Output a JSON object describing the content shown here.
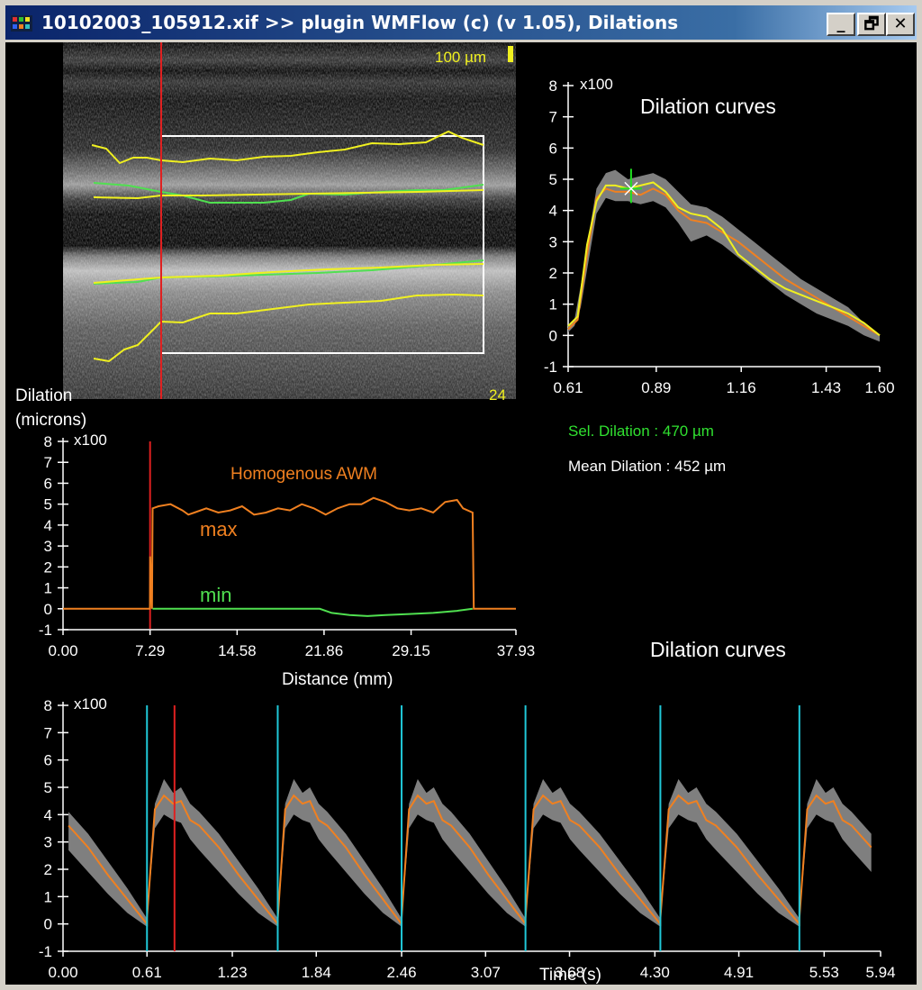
{
  "window": {
    "title": "10102003_105912.xif >> plugin WMFlow (c) (v 1.05), Dilations",
    "buttons": {
      "minimize": "_",
      "restore": "🗗",
      "close": "✕"
    },
    "colors": {
      "titlebar": "#0a246a",
      "background": "#000000"
    }
  },
  "ultrasound": {
    "scale_label": "100 µm",
    "frame_number": "24",
    "colors": {
      "tracking": "#f0f020",
      "wall": "#50e050",
      "cursor": "#e02020",
      "roi": "#ffffff"
    }
  },
  "readouts": {
    "sel_dilation": "Sel. Dilation : 470 µm",
    "mean_dilation": "Mean Dilation : 452 µm"
  },
  "chart_data": [
    {
      "type": "line",
      "id": "dilation-curves-top",
      "title": "Dilation curves",
      "multiplier_label": "x100",
      "ylim": [
        -1,
        8
      ],
      "yticks": [
        "8",
        "7",
        "6",
        "5",
        "4",
        "3",
        "2",
        "1",
        "0",
        "-1"
      ],
      "xlim": [
        0.61,
        1.6
      ],
      "xticks": [
        "0.61",
        "0.89",
        "1.16",
        "1.43",
        "1.60"
      ],
      "band": {
        "x": [
          0.61,
          0.63,
          0.65,
          0.68,
          0.7,
          0.73,
          0.76,
          0.8,
          0.84,
          0.88,
          0.92,
          0.96,
          1.0,
          1.05,
          1.1,
          1.15,
          1.2,
          1.25,
          1.3,
          1.35,
          1.4,
          1.45,
          1.5,
          1.55,
          1.6
        ],
        "upper": [
          0.3,
          0.5,
          1.6,
          3.5,
          4.7,
          5.2,
          5.3,
          5.0,
          5.1,
          5.2,
          5.0,
          4.6,
          4.2,
          4.1,
          3.8,
          3.4,
          3.0,
          2.6,
          2.2,
          1.8,
          1.5,
          1.2,
          0.9,
          0.4,
          0.0
        ],
        "lower": [
          0.1,
          0.3,
          0.9,
          2.7,
          3.9,
          4.4,
          4.3,
          4.3,
          4.2,
          4.3,
          4.1,
          3.6,
          3.0,
          3.2,
          2.9,
          2.5,
          2.1,
          1.7,
          1.3,
          1.0,
          0.7,
          0.5,
          0.3,
          0.0,
          -0.2
        ]
      },
      "series": [
        {
          "color": "#f08020",
          "x": [
            0.61,
            0.64,
            0.67,
            0.7,
            0.73,
            0.76,
            0.8,
            0.84,
            0.88,
            0.92,
            0.96,
            1.0,
            1.05,
            1.1,
            1.15,
            1.2,
            1.25,
            1.3,
            1.35,
            1.4,
            1.45,
            1.5,
            1.55,
            1.6
          ],
          "y": [
            0.2,
            0.5,
            2.6,
            4.4,
            4.7,
            4.6,
            4.6,
            4.5,
            4.7,
            4.5,
            4.0,
            3.7,
            3.6,
            3.3,
            3.0,
            2.6,
            2.2,
            1.8,
            1.5,
            1.2,
            0.9,
            0.6,
            0.3,
            0.0
          ]
        },
        {
          "color": "#f0f020",
          "x": [
            0.61,
            0.64,
            0.67,
            0.7,
            0.73,
            0.76,
            0.8,
            0.84,
            0.88,
            0.92,
            0.96,
            1.0,
            1.05,
            1.1,
            1.15,
            1.2,
            1.25,
            1.3,
            1.35,
            1.4,
            1.45,
            1.5,
            1.55,
            1.6
          ],
          "y": [
            0.3,
            0.6,
            2.9,
            4.3,
            4.8,
            4.8,
            4.7,
            4.8,
            4.9,
            4.6,
            4.1,
            3.9,
            3.8,
            3.4,
            2.6,
            2.2,
            1.8,
            1.5,
            1.3,
            1.1,
            0.9,
            0.7,
            0.4,
            0.0
          ]
        }
      ],
      "marker": {
        "x": 0.81,
        "y": 4.7,
        "color": "#20e020"
      }
    },
    {
      "type": "line",
      "id": "dilation-vs-distance",
      "ylabel": "Dilation\n(microns)",
      "ylabel_lines": [
        "Dilation",
        "(microns)"
      ],
      "multiplier_label": "x100",
      "title": "Homogenous AWM",
      "xlabel": "Distance (mm)",
      "ylim": [
        -1,
        8
      ],
      "yticks": [
        "8",
        "7",
        "6",
        "5",
        "4",
        "3",
        "2",
        "1",
        "0",
        "-1"
      ],
      "xlim": [
        0.0,
        37.93
      ],
      "xticks": [
        "0.00",
        "7.29",
        "14.58",
        "21.86",
        "29.15",
        "37.93"
      ],
      "cursor_x": 7.29,
      "series": [
        {
          "name": "max",
          "color": "#f08020",
          "x": [
            0.0,
            7.28,
            7.3,
            7.45,
            7.5,
            8.0,
            9.0,
            10.0,
            10.5,
            11.0,
            12.0,
            13.0,
            14.0,
            15.0,
            16.0,
            17.0,
            18.0,
            19.0,
            20.0,
            21.0,
            22.0,
            23.0,
            24.0,
            25.0,
            26.0,
            27.0,
            28.0,
            29.0,
            30.0,
            31.0,
            32.0,
            33.0,
            33.5,
            34.3,
            34.4,
            34.5,
            37.93
          ],
          "y": [
            0.0,
            0.0,
            2.5,
            0.0,
            4.8,
            4.9,
            5.0,
            4.7,
            4.5,
            4.6,
            4.8,
            4.6,
            4.7,
            4.9,
            4.5,
            4.6,
            4.8,
            4.7,
            5.0,
            4.8,
            4.5,
            4.8,
            5.0,
            5.0,
            5.3,
            5.1,
            4.8,
            4.7,
            4.8,
            4.6,
            5.1,
            5.2,
            4.8,
            4.6,
            0.0,
            0.0,
            0.0
          ]
        },
        {
          "name": "min",
          "color": "#50e050",
          "x": [
            7.5,
            21.5,
            22.5,
            24.0,
            25.5,
            27.0,
            29.0,
            31.0,
            33.0,
            34.3
          ],
          "y": [
            0.0,
            0.0,
            -0.2,
            -0.3,
            -0.35,
            -0.3,
            -0.25,
            -0.2,
            -0.1,
            0.0
          ]
        }
      ]
    },
    {
      "type": "line",
      "id": "dilation-vs-time",
      "title": "Dilation curves",
      "xlabel": "Time (s)",
      "multiplier_label": "x100",
      "ylim": [
        -1,
        8
      ],
      "yticks": [
        "8",
        "7",
        "6",
        "5",
        "4",
        "3",
        "2",
        "1",
        "0",
        "-1"
      ],
      "xlim": [
        0.0,
        5.94
      ],
      "xticks": [
        "0.00",
        "0.61",
        "1.23",
        "1.84",
        "2.46",
        "3.07",
        "3.68",
        "4.30",
        "4.91",
        "5.53",
        "5.94"
      ],
      "beat_markers": [
        0.61,
        1.56,
        2.46,
        3.36,
        4.34,
        5.35
      ],
      "cursor_x": 0.81,
      "cycle_shape": {
        "t": [
          0.0,
          0.06,
          0.13,
          0.2,
          0.26,
          0.33,
          0.4,
          0.55,
          0.7,
          0.85,
          1.0
        ],
        "upper": [
          0.5,
          4.4,
          5.3,
          4.8,
          5.0,
          4.4,
          4.1,
          3.3,
          2.3,
          1.3,
          0.2
        ],
        "lower": [
          0.1,
          3.5,
          4.0,
          3.8,
          3.7,
          3.1,
          2.7,
          1.9,
          1.1,
          0.4,
          -0.1
        ],
        "mean": [
          0.2,
          4.2,
          4.7,
          4.4,
          4.5,
          3.8,
          3.6,
          2.8,
          1.8,
          0.9,
          0.0
        ]
      }
    }
  ]
}
